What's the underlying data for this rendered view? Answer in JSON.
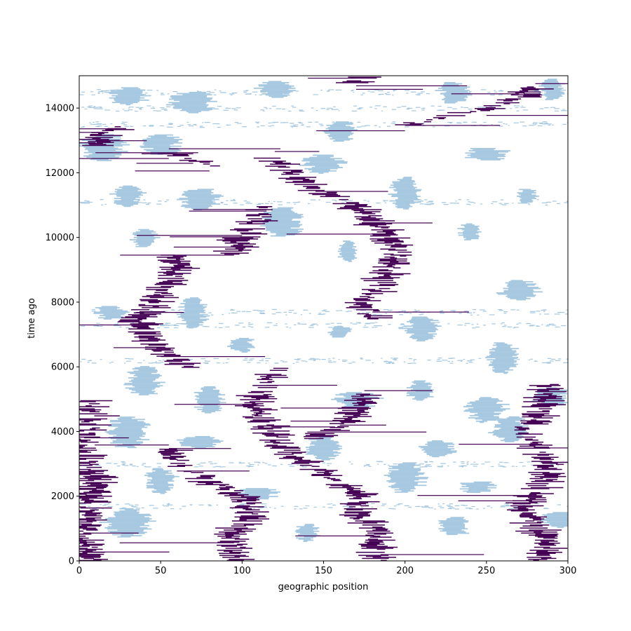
{
  "chart_data": {
    "type": "heatmap",
    "title": "",
    "xlabel": "geographic position",
    "ylabel": "time ago",
    "xlim": [
      0,
      300
    ],
    "ylim": [
      0,
      15000
    ],
    "x_ticks": [
      0,
      50,
      100,
      150,
      200,
      250,
      300
    ],
    "y_ticks": [
      0,
      2000,
      4000,
      6000,
      8000,
      10000,
      12000,
      14000
    ],
    "grid": false,
    "legend": "none",
    "colors": {
      "background": "#ffffff",
      "light_category": "#a6c8e0",
      "dark_category": "#440154"
    },
    "dark_lineages": [
      {
        "points": [
          [
            8,
            0
          ],
          [
            5,
            500
          ],
          [
            3,
            1000
          ],
          [
            4,
            1500
          ],
          [
            10,
            2500
          ],
          [
            5,
            3000
          ],
          [
            2,
            3500
          ],
          [
            3,
            4000
          ],
          [
            12,
            4500
          ],
          [
            5,
            5000
          ]
        ]
      },
      {
        "points": [
          [
            100,
            0
          ],
          [
            95,
            500
          ],
          [
            97,
            1000
          ],
          [
            105,
            1500
          ],
          [
            100,
            2000
          ],
          [
            80,
            2500
          ],
          [
            60,
            3000
          ],
          [
            55,
            3500
          ]
        ]
      },
      {
        "points": [
          [
            185,
            0
          ],
          [
            180,
            500
          ],
          [
            182,
            1000
          ],
          [
            170,
            1500
          ],
          [
            175,
            2000
          ],
          [
            160,
            2500
          ],
          [
            140,
            3000
          ],
          [
            125,
            3500
          ],
          [
            118,
            4000
          ],
          [
            108,
            4500
          ],
          [
            110,
            5000
          ],
          [
            115,
            5500
          ],
          [
            120,
            6000
          ]
        ]
      },
      {
        "points": [
          [
            285,
            0
          ],
          [
            290,
            500
          ],
          [
            280,
            1000
          ],
          [
            275,
            1500
          ],
          [
            278,
            2000
          ],
          [
            285,
            2500
          ],
          [
            290,
            3000
          ],
          [
            280,
            3500
          ],
          [
            270,
            4000
          ],
          [
            282,
            4500
          ],
          [
            285,
            5000
          ],
          [
            290,
            5500
          ]
        ]
      },
      {
        "points": [
          [
            65,
            6000
          ],
          [
            50,
            6500
          ],
          [
            40,
            7000
          ],
          [
            35,
            7500
          ],
          [
            45,
            8000
          ],
          [
            52,
            8500
          ],
          [
            60,
            9000
          ],
          [
            58,
            9500
          ]
        ]
      },
      {
        "points": [
          [
            140,
            3800
          ],
          [
            160,
            4200
          ],
          [
            170,
            4700
          ],
          [
            175,
            5200
          ]
        ]
      },
      {
        "points": [
          [
            180,
            7500
          ],
          [
            175,
            8000
          ],
          [
            185,
            8500
          ],
          [
            195,
            9500
          ],
          [
            190,
            10000
          ],
          [
            180,
            10500
          ],
          [
            170,
            11000
          ],
          [
            145,
            11500
          ],
          [
            130,
            12000
          ],
          [
            120,
            12500
          ]
        ]
      },
      {
        "points": [
          [
            95,
            9500
          ],
          [
            100,
            10000
          ],
          [
            110,
            10500
          ],
          [
            115,
            11000
          ]
        ]
      },
      {
        "points": [
          [
            10,
            12800
          ],
          [
            15,
            13200
          ],
          [
            25,
            13500
          ]
        ]
      },
      {
        "points": [
          [
            55,
            12600
          ],
          [
            70,
            12400
          ],
          [
            80,
            12200
          ]
        ]
      },
      {
        "points": [
          [
            200,
            13500
          ],
          [
            250,
            14000
          ],
          [
            270,
            14300
          ],
          [
            280,
            14700
          ]
        ]
      },
      {
        "points": [
          [
            170,
            14800
          ],
          [
            180,
            15000
          ]
        ]
      }
    ],
    "light_patches": [
      {
        "center": [
          30,
          14400
        ]
      },
      {
        "center": [
          70,
          14200
        ]
      },
      {
        "center": [
          120,
          14600
        ]
      },
      {
        "center": [
          160,
          13300
        ]
      },
      {
        "center": [
          230,
          14500
        ]
      },
      {
        "center": [
          290,
          14600
        ]
      },
      {
        "center": [
          15,
          12800
        ]
      },
      {
        "center": [
          50,
          12900
        ]
      },
      {
        "center": [
          150,
          12300
        ]
      },
      {
        "center": [
          275,
          11300
        ]
      },
      {
        "center": [
          250,
          12600
        ]
      },
      {
        "center": [
          30,
          11300
        ]
      },
      {
        "center": [
          75,
          11200
        ]
      },
      {
        "center": [
          200,
          11400
        ]
      },
      {
        "center": [
          270,
          8400
        ]
      },
      {
        "center": [
          40,
          10000
        ]
      },
      {
        "center": [
          125,
          10500
        ]
      },
      {
        "center": [
          165,
          9600
        ]
      },
      {
        "center": [
          240,
          10200
        ]
      },
      {
        "center": [
          20,
          7700
        ]
      },
      {
        "center": [
          70,
          7700
        ]
      },
      {
        "center": [
          100,
          6700
        ]
      },
      {
        "center": [
          160,
          7100
        ]
      },
      {
        "center": [
          210,
          7200
        ]
      },
      {
        "center": [
          260,
          6300
        ]
      },
      {
        "center": [
          40,
          5600
        ]
      },
      {
        "center": [
          80,
          5000
        ]
      },
      {
        "center": [
          170,
          5000
        ]
      },
      {
        "center": [
          210,
          5300
        ]
      },
      {
        "center": [
          250,
          4700
        ]
      },
      {
        "center": [
          290,
          5100
        ]
      },
      {
        "center": [
          30,
          4000
        ]
      },
      {
        "center": [
          75,
          3700
        ]
      },
      {
        "center": [
          150,
          3500
        ]
      },
      {
        "center": [
          220,
          3500
        ]
      },
      {
        "center": [
          265,
          4100
        ]
      },
      {
        "center": [
          50,
          2500
        ]
      },
      {
        "center": [
          110,
          2100
        ]
      },
      {
        "center": [
          200,
          2600
        ]
      },
      {
        "center": [
          245,
          2300
        ]
      },
      {
        "center": [
          30,
          1200
        ]
      },
      {
        "center": [
          140,
          900
        ]
      },
      {
        "center": [
          230,
          1100
        ]
      },
      {
        "center": [
          295,
          1300
        ]
      }
    ],
    "speckle_bands": [
      1700,
      3000,
      6200,
      7300,
      7700,
      11100,
      13500,
      14000,
      14500
    ]
  }
}
